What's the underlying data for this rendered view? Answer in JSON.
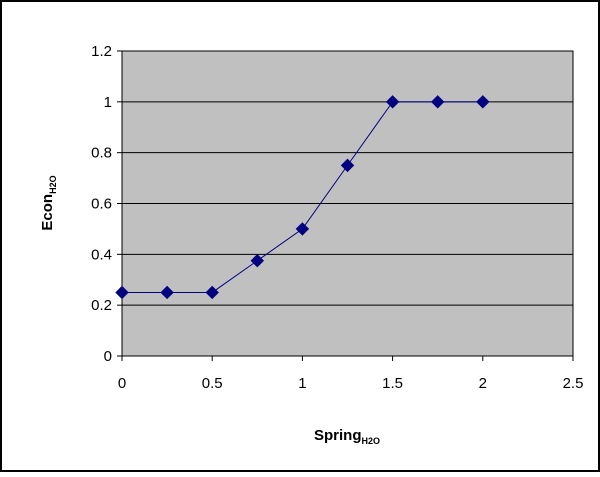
{
  "chart_data": {
    "type": "line",
    "x": [
      0,
      0.25,
      0.5,
      0.75,
      1,
      1.25,
      1.5,
      1.75,
      2
    ],
    "series": [
      {
        "values": [
          0.25,
          0.25,
          0.25,
          0.375,
          0.5,
          0.75,
          1,
          1,
          1
        ]
      }
    ],
    "xlabel": {
      "main": "Spring",
      "sub": "H2O"
    },
    "ylabel": {
      "main": "Econ",
      "sub": "H2O"
    },
    "xlim": [
      0,
      2.5
    ],
    "ylim": [
      0,
      1.2
    ],
    "xticks": [
      "0",
      "0.5",
      "1",
      "1.5",
      "2",
      "2.5"
    ],
    "yticks": [
      "0",
      "0.2",
      "0.4",
      "0.6",
      "0.8",
      "1",
      "1.2"
    ],
    "grid": "horizontal",
    "legend": "none",
    "colors": {
      "series": "#000080",
      "plot_background": "#c0c0c0",
      "gridline": "#000000",
      "border": "#000000"
    },
    "marker": "diamond"
  }
}
